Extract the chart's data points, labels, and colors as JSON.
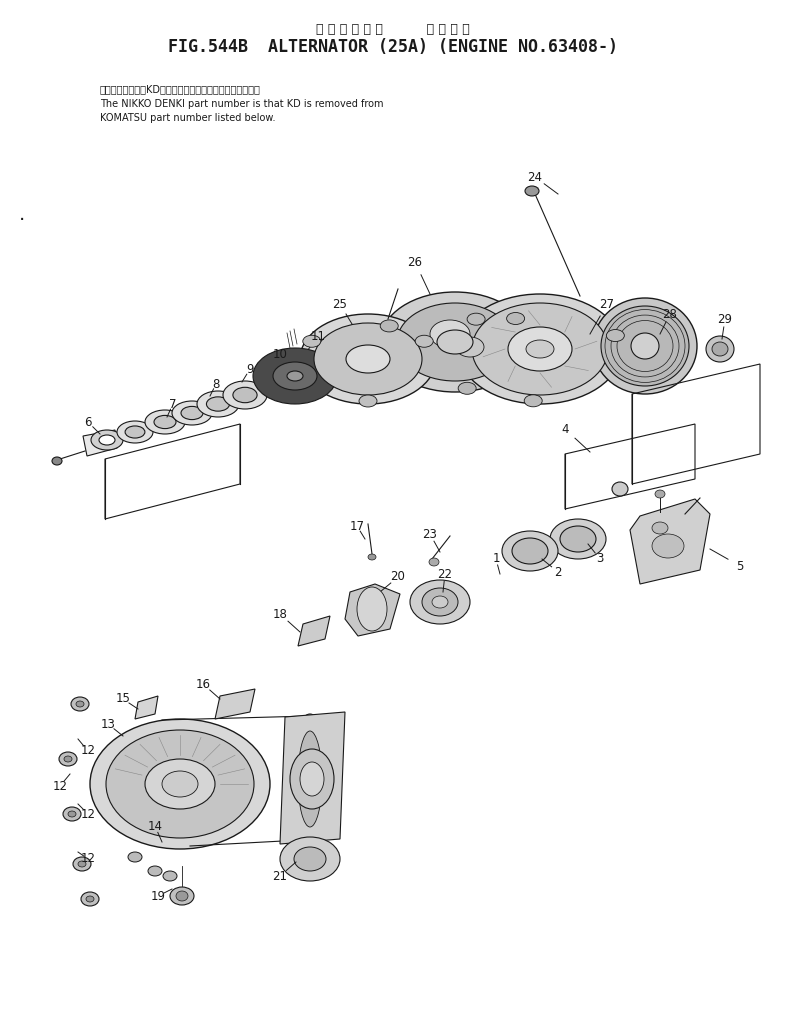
{
  "title_line1": "オ ル タ ネ ー タ          適 用 号 機",
  "title_line2": "FIG.544B  ALTERNATOR (25A) (ENGINE NO.63408-)",
  "note_jp": "品番のメーカ記号KDを除いたものが日炅電機の品番です．",
  "note_en1": "The NIKKO DENKI part number is that KD is removed from",
  "note_en2": "KOMATSU part number listed below.",
  "bg_color": "#ffffff",
  "line_color": "#1a1a1a",
  "title_fontsize": 12,
  "note_fontsize": 7,
  "label_fontsize": 8.5
}
